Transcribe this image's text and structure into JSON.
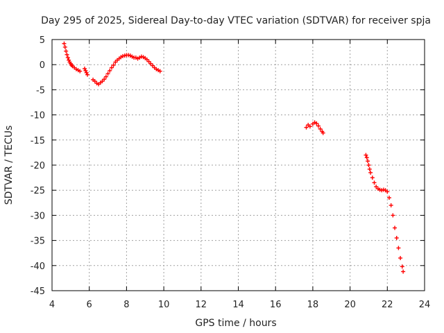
{
  "chart_data": {
    "type": "scatter",
    "title": "Day 295 of 2025, Sidereal Day-to-day VTEC variation (SDTVAR) for receiver spja",
    "xlabel": "GPS time / hours",
    "ylabel": "SDTVAR / TECUs",
    "xlim": [
      4,
      24
    ],
    "ylim": [
      -45,
      5
    ],
    "xticks": [
      4,
      6,
      8,
      10,
      12,
      14,
      16,
      18,
      20,
      22,
      24
    ],
    "yticks": [
      5,
      0,
      -5,
      -10,
      -15,
      -20,
      -25,
      -30,
      -35,
      -40,
      -45
    ],
    "grid": true,
    "marker": "+",
    "series_color": "#ff0000",
    "series": [
      {
        "name": "SDTVAR",
        "x": [
          4.65,
          4.7,
          4.75,
          4.8,
          4.85,
          4.9,
          4.95,
          5.0,
          5.05,
          5.1,
          5.2,
          5.3,
          5.4,
          5.5,
          5.75,
          5.8,
          5.85,
          5.9,
          6.2,
          6.3,
          6.4,
          6.5,
          6.6,
          6.7,
          6.8,
          6.9,
          7.0,
          7.1,
          7.2,
          7.3,
          7.4,
          7.5,
          7.6,
          7.7,
          7.8,
          7.9,
          8.0,
          8.1,
          8.2,
          8.3,
          8.4,
          8.5,
          8.6,
          8.7,
          8.8,
          8.9,
          9.0,
          9.1,
          9.2,
          9.3,
          9.4,
          9.5,
          9.6,
          9.7,
          9.8,
          17.65,
          17.75,
          17.85,
          18.0,
          18.1,
          18.2,
          18.3,
          18.4,
          18.5,
          18.55,
          20.85,
          20.9,
          20.95,
          21.0,
          21.05,
          21.1,
          21.2,
          21.3,
          21.4,
          21.5,
          21.6,
          21.7,
          21.8,
          21.9,
          22.0,
          22.1,
          22.2,
          22.3,
          22.4,
          22.5,
          22.6,
          22.7,
          22.8,
          22.85
        ],
        "y": [
          4.2,
          3.5,
          2.7,
          2.0,
          1.4,
          0.9,
          0.5,
          0.2,
          -0.1,
          -0.3,
          -0.6,
          -0.9,
          -1.1,
          -1.3,
          -0.8,
          -1.2,
          -1.6,
          -2.0,
          -3.0,
          -3.3,
          -3.7,
          -3.9,
          -3.6,
          -3.3,
          -2.9,
          -2.4,
          -1.8,
          -1.2,
          -0.6,
          -0.1,
          0.5,
          0.9,
          1.2,
          1.5,
          1.7,
          1.8,
          1.9,
          1.9,
          1.8,
          1.6,
          1.4,
          1.4,
          1.2,
          1.4,
          1.6,
          1.5,
          1.3,
          1.0,
          0.6,
          0.2,
          -0.2,
          -0.6,
          -0.9,
          -1.1,
          -1.3,
          -12.5,
          -12.0,
          -12.3,
          -11.8,
          -11.5,
          -11.7,
          -12.2,
          -12.8,
          -13.3,
          -13.6,
          -18.0,
          -18.5,
          -19.2,
          -20.0,
          -20.8,
          -21.5,
          -22.5,
          -23.5,
          -24.3,
          -24.7,
          -24.9,
          -25.0,
          -24.9,
          -25.0,
          -25.3,
          -26.5,
          -28.0,
          -30.0,
          -32.5,
          -34.5,
          -36.5,
          -38.5,
          -40.2,
          -41.2
        ]
      }
    ]
  }
}
